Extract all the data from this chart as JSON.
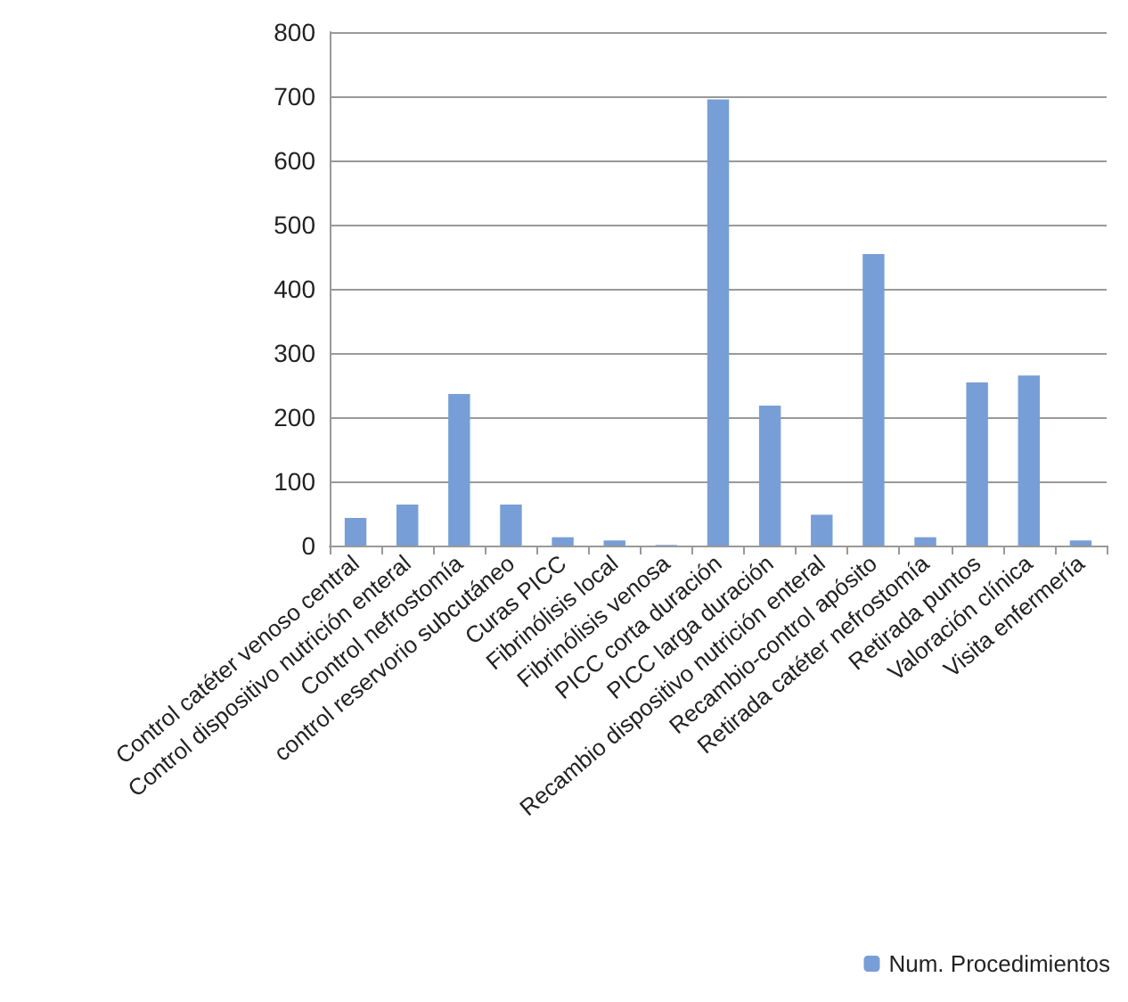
{
  "chart_data": {
    "type": "bar",
    "categories": [
      "Control catéter venoso central",
      "Control dispositivo nutrición enteral",
      "Control nefrostomía",
      "control reservorio subcutáneo",
      "Curas PICC",
      "Fibrinólisis local",
      "Fibrinólisis venosa",
      "PICC corta duración",
      "PICC larga duración",
      "Recambio dispositivo nutrición enteral",
      "Recambio-control apósito",
      "Retirada catéter nefrostomía",
      "Retirada puntos",
      "Valoración clínica",
      "Visita enfermería"
    ],
    "series": [
      {
        "name": "Num. Procedimientos",
        "color": "#779ed6",
        "values": [
          43,
          64,
          236,
          64,
          13,
          8,
          1,
          695,
          218,
          48,
          454,
          13,
          254,
          265,
          8
        ]
      }
    ],
    "ylim": [
      0,
      800
    ],
    "yticks": [
      0,
      100,
      200,
      300,
      400,
      500,
      600,
      700,
      800
    ],
    "grid": "y",
    "legend": "bottom right"
  }
}
